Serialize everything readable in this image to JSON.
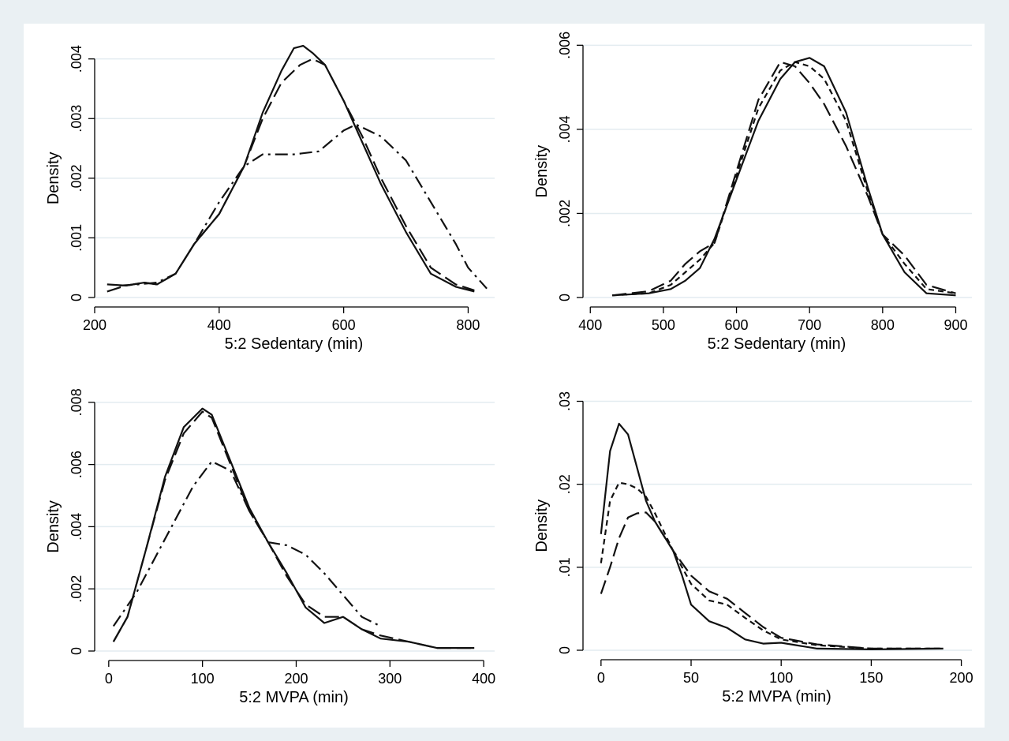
{
  "chart_data": [
    {
      "type": "line",
      "xlabel": "5:2 Sedentary (min)",
      "ylabel": "Density",
      "xlim": [
        200,
        840
      ],
      "ylim": [
        0,
        0.0043
      ],
      "xticks": [
        200,
        400,
        600,
        800
      ],
      "xtick_labels": [
        "200",
        "400",
        "600",
        "800"
      ],
      "yticks": [
        0,
        0.001,
        0.002,
        0.003,
        0.004
      ],
      "ytick_labels": [
        "0",
        ".001",
        ".002",
        ".003",
        ".004"
      ],
      "grid": true,
      "legend": "none",
      "series": [
        {
          "dash": "solid",
          "x": [
            220,
            250,
            280,
            300,
            330,
            360,
            400,
            440,
            470,
            500,
            520,
            535,
            550,
            570,
            600,
            630,
            660,
            700,
            740,
            780,
            810
          ],
          "y": [
            0.00022,
            0.0002,
            0.00025,
            0.00022,
            0.0004,
            0.0009,
            0.0014,
            0.0022,
            0.0031,
            0.0038,
            0.00418,
            0.00422,
            0.0041,
            0.0039,
            0.0033,
            0.0026,
            0.0019,
            0.0011,
            0.0004,
            0.00018,
            0.0001
          ]
        },
        {
          "dash": "long-dash",
          "x": [
            220,
            250,
            280,
            300,
            330,
            360,
            400,
            440,
            470,
            500,
            530,
            550,
            570,
            600,
            630,
            660,
            700,
            740,
            780,
            810
          ],
          "y": [
            0.0001,
            0.0002,
            0.00025,
            0.00022,
            0.0004,
            0.0009,
            0.0014,
            0.0022,
            0.003,
            0.0036,
            0.0039,
            0.004,
            0.0039,
            0.0033,
            0.0027,
            0.002,
            0.0012,
            0.0005,
            0.00022,
            0.00012
          ]
        },
        {
          "dash": "dash-dot",
          "x": [
            240,
            270,
            300,
            330,
            360,
            400,
            440,
            470,
            500,
            520,
            560,
            600,
            620,
            640,
            660,
            700,
            740,
            780,
            800,
            830
          ],
          "y": [
            0.0002,
            0.00022,
            0.00025,
            0.0004,
            0.0009,
            0.0016,
            0.0022,
            0.0024,
            0.0024,
            0.0024,
            0.00245,
            0.0028,
            0.0029,
            0.0028,
            0.0027,
            0.0023,
            0.0016,
            0.0009,
            0.0005,
            0.00015
          ]
        }
      ]
    },
    {
      "type": "line",
      "xlabel": "5:2 Sedentary (min)",
      "ylabel": "Density",
      "xlim": [
        390,
        920
      ],
      "ylim": [
        0,
        0.0061
      ],
      "xticks": [
        400,
        500,
        600,
        700,
        800,
        900
      ],
      "xtick_labels": [
        "400",
        "500",
        "600",
        "700",
        "800",
        "900"
      ],
      "yticks": [
        0,
        0.002,
        0.004,
        0.006
      ],
      "ytick_labels": [
        "0",
        ".002",
        ".004",
        ".006"
      ],
      "grid": true,
      "legend": "none",
      "series": [
        {
          "dash": "solid",
          "x": [
            430,
            480,
            510,
            530,
            550,
            570,
            600,
            630,
            660,
            680,
            700,
            720,
            750,
            780,
            800,
            830,
            860,
            900
          ],
          "y": [
            5e-05,
            0.0001,
            0.0002,
            0.0004,
            0.0007,
            0.0014,
            0.0028,
            0.0042,
            0.0052,
            0.0056,
            0.0057,
            0.0055,
            0.0044,
            0.0026,
            0.0015,
            0.0006,
            0.0001,
            5e-05
          ]
        },
        {
          "dash": "short-dash",
          "x": [
            430,
            480,
            510,
            530,
            550,
            570,
            600,
            630,
            660,
            680,
            700,
            720,
            750,
            780,
            800,
            830,
            860,
            900
          ],
          "y": [
            5e-05,
            0.0001,
            0.0003,
            0.0006,
            0.0009,
            0.0013,
            0.0029,
            0.0045,
            0.0054,
            0.0056,
            0.0055,
            0.0052,
            0.0042,
            0.0025,
            0.0015,
            0.0008,
            0.0002,
            0.0001
          ]
        },
        {
          "dash": "long-dash",
          "x": [
            430,
            480,
            510,
            530,
            550,
            570,
            600,
            630,
            660,
            680,
            700,
            720,
            750,
            780,
            800,
            830,
            860,
            900
          ],
          "y": [
            5e-05,
            0.00015,
            0.0004,
            0.0008,
            0.0011,
            0.0013,
            0.003,
            0.0047,
            0.0056,
            0.0055,
            0.0051,
            0.0046,
            0.0036,
            0.0024,
            0.0015,
            0.001,
            0.0003,
            0.0001
          ]
        }
      ]
    },
    {
      "type": "line",
      "xlabel": "5:2 MVPA (min)",
      "ylabel": "Density",
      "xlim": [
        -15,
        410
      ],
      "ylim": [
        0,
        0.0083
      ],
      "xticks": [
        0,
        100,
        200,
        300,
        400
      ],
      "xtick_labels": [
        "0",
        "100",
        "200",
        "300",
        "400"
      ],
      "yticks": [
        0,
        0.002,
        0.004,
        0.006,
        0.008
      ],
      "ytick_labels": [
        "0",
        ".002",
        ".004",
        ".006",
        ".008"
      ],
      "grid": true,
      "legend": "none",
      "series": [
        {
          "dash": "solid",
          "x": [
            5,
            20,
            40,
            60,
            80,
            100,
            110,
            130,
            150,
            170,
            190,
            210,
            230,
            250,
            270,
            290,
            320,
            350,
            390
          ],
          "y": [
            0.0003,
            0.0011,
            0.0033,
            0.0056,
            0.0072,
            0.0078,
            0.0076,
            0.0061,
            0.0046,
            0.0035,
            0.0025,
            0.0014,
            0.0009,
            0.0011,
            0.0007,
            0.0004,
            0.0003,
            0.0001,
            0.0001
          ]
        },
        {
          "dash": "long-dash",
          "x": [
            5,
            20,
            40,
            60,
            80,
            100,
            110,
            130,
            150,
            170,
            190,
            210,
            230,
            250,
            270,
            290,
            320,
            350,
            390
          ],
          "y": [
            0.0003,
            0.0011,
            0.0033,
            0.0055,
            0.007,
            0.0077,
            0.0075,
            0.006,
            0.0045,
            0.0035,
            0.0024,
            0.0015,
            0.0011,
            0.0011,
            0.0007,
            0.0005,
            0.0003,
            0.0001,
            0.0001
          ]
        },
        {
          "dash": "dash-dot",
          "x": [
            5,
            30,
            60,
            90,
            110,
            130,
            150,
            170,
            190,
            210,
            230,
            250,
            270,
            290
          ],
          "y": [
            0.0008,
            0.0019,
            0.0036,
            0.0053,
            0.0061,
            0.0058,
            0.0045,
            0.0035,
            0.0034,
            0.0031,
            0.0025,
            0.0018,
            0.0011,
            0.0008
          ]
        }
      ]
    },
    {
      "type": "line",
      "xlabel": "5:2 MVPA (min)",
      "ylabel": "Density",
      "xlim": [
        -10,
        205
      ],
      "ylim": [
        0,
        0.031
      ],
      "xticks": [
        0,
        50,
        100,
        150,
        200
      ],
      "xtick_labels": [
        "0",
        "50",
        "100",
        "150",
        "200"
      ],
      "yticks": [
        0,
        0.01,
        0.02,
        0.03
      ],
      "ytick_labels": [
        "0",
        ".01",
        ".02",
        ".03"
      ],
      "grid": true,
      "legend": "none",
      "series": [
        {
          "dash": "solid",
          "x": [
            0,
            5,
            10,
            15,
            20,
            25,
            30,
            40,
            45,
            50,
            60,
            70,
            80,
            90,
            100,
            120,
            150,
            190
          ],
          "y": [
            0.014,
            0.024,
            0.0273,
            0.026,
            0.022,
            0.018,
            0.0155,
            0.012,
            0.009,
            0.0055,
            0.0035,
            0.0027,
            0.0013,
            0.0008,
            0.0009,
            0.0002,
            0.0001,
            0.0002
          ]
        },
        {
          "dash": "short-dash",
          "x": [
            0,
            5,
            10,
            15,
            20,
            25,
            30,
            40,
            50,
            60,
            70,
            80,
            90,
            100,
            120,
            150,
            190
          ],
          "y": [
            0.0105,
            0.018,
            0.0202,
            0.02,
            0.0195,
            0.0185,
            0.0165,
            0.012,
            0.008,
            0.006,
            0.0055,
            0.0039,
            0.0024,
            0.0013,
            0.0006,
            0.0002,
            0.0002
          ]
        },
        {
          "dash": "long-dash",
          "x": [
            0,
            5,
            10,
            15,
            20,
            25,
            30,
            40,
            50,
            60,
            70,
            80,
            90,
            100,
            120,
            150,
            190
          ],
          "y": [
            0.0068,
            0.01,
            0.0135,
            0.016,
            0.0165,
            0.0166,
            0.0155,
            0.012,
            0.009,
            0.0071,
            0.0062,
            0.0045,
            0.0028,
            0.0015,
            0.0007,
            0.0002,
            0.0002
          ]
        }
      ]
    }
  ]
}
